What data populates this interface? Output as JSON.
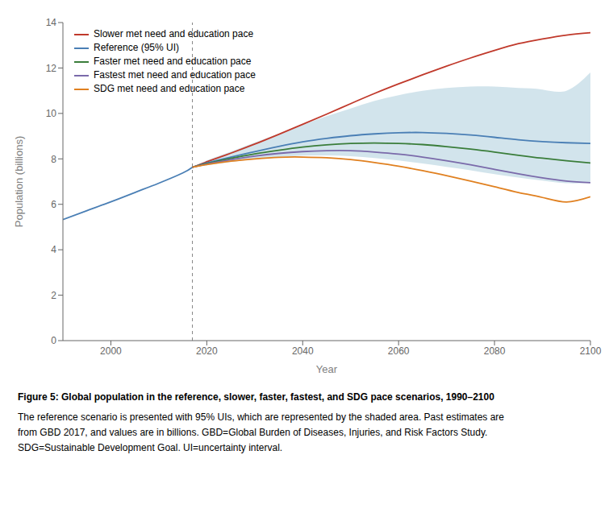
{
  "chart_data": {
    "type": "line",
    "title": "Figure 5: Global population in the reference, slower, faster, fastest, and SDG pace scenarios, 1990–2100",
    "caption": [
      "The reference scenario is presented with 95% UIs, which are represented by the shaded area. Past estimates are",
      "from GBD 2017, and values are in billions. GBD=Global Burden of Diseases, Injuries, and Risk Factors Study.",
      "SDG=Sustainable Development Goal. UI=uncertainty interval."
    ],
    "xlabel": "Year",
    "ylabel": "Population (billions)",
    "xlim": [
      1990,
      2100
    ],
    "ylim": [
      0,
      14
    ],
    "xticks": [
      2000,
      2020,
      2040,
      2060,
      2080,
      2100
    ],
    "yticks": [
      0,
      2,
      4,
      6,
      8,
      10,
      12,
      14
    ],
    "grid": false,
    "legend": "upper left",
    "vline": 2017,
    "series": [
      {
        "color": "#4a7fb5",
        "x": [
          1990,
          1995,
          2000,
          2005,
          2010,
          2015,
          2017
        ],
        "values": [
          5.33,
          5.72,
          6.11,
          6.52,
          6.93,
          7.38,
          7.63
        ]
      },
      {
        "name": "Slower met need and education pace",
        "color": "#c0392b",
        "x": [
          2017,
          2020,
          2025,
          2030,
          2035,
          2040,
          2045,
          2050,
          2055,
          2060,
          2065,
          2070,
          2075,
          2080,
          2085,
          2090,
          2095,
          2100
        ],
        "values": [
          7.63,
          7.87,
          8.25,
          8.65,
          9.08,
          9.52,
          9.97,
          10.43,
          10.88,
          11.3,
          11.7,
          12.08,
          12.44,
          12.77,
          13.07,
          13.28,
          13.45,
          13.55
        ]
      },
      {
        "name": "Reference (95% UI)",
        "color": "#4a7fb5",
        "band_color": "#bad6e2",
        "x": [
          2017,
          2020,
          2025,
          2030,
          2035,
          2040,
          2045,
          2050,
          2055,
          2060,
          2065,
          2070,
          2075,
          2080,
          2085,
          2090,
          2095,
          2100
        ],
        "values": [
          7.63,
          7.82,
          8.08,
          8.32,
          8.55,
          8.75,
          8.9,
          9.02,
          9.1,
          9.15,
          9.16,
          9.12,
          9.05,
          8.95,
          8.84,
          8.76,
          8.71,
          8.68
        ],
        "upper": [
          7.63,
          7.93,
          8.32,
          8.72,
          9.1,
          9.5,
          9.88,
          10.22,
          10.55,
          10.8,
          11.0,
          11.12,
          11.18,
          11.18,
          11.12,
          11.05,
          11.0,
          11.8
        ],
        "lower": [
          7.63,
          7.72,
          7.86,
          7.98,
          8.08,
          8.14,
          8.15,
          8.12,
          8.04,
          7.93,
          7.8,
          7.65,
          7.5,
          7.33,
          7.18,
          7.04,
          6.93,
          6.95
        ]
      },
      {
        "name": "Faster met need and education pace",
        "color": "#3a7d3a",
        "x": [
          2017,
          2020,
          2025,
          2030,
          2035,
          2040,
          2045,
          2050,
          2055,
          2060,
          2065,
          2070,
          2075,
          2080,
          2085,
          2090,
          2095,
          2100
        ],
        "values": [
          7.63,
          7.79,
          8.02,
          8.22,
          8.38,
          8.52,
          8.62,
          8.68,
          8.7,
          8.68,
          8.63,
          8.54,
          8.43,
          8.3,
          8.16,
          8.03,
          7.92,
          7.82
        ]
      },
      {
        "name": "Fastest met need and education pace",
        "color": "#7a6aaa",
        "x": [
          2017,
          2020,
          2025,
          2030,
          2035,
          2040,
          2045,
          2050,
          2055,
          2060,
          2065,
          2070,
          2075,
          2080,
          2085,
          2090,
          2095,
          2100
        ],
        "values": [
          7.63,
          7.77,
          7.96,
          8.12,
          8.24,
          8.32,
          8.36,
          8.36,
          8.3,
          8.21,
          8.08,
          7.92,
          7.74,
          7.54,
          7.34,
          7.16,
          7.02,
          6.95
        ]
      },
      {
        "name": "SDG met need and education pace",
        "color": "#e08020",
        "x": [
          2017,
          2020,
          2025,
          2030,
          2035,
          2040,
          2045,
          2050,
          2055,
          2060,
          2065,
          2070,
          2075,
          2080,
          2085,
          2090,
          2095,
          2100
        ],
        "values": [
          7.63,
          7.75,
          7.9,
          8.0,
          8.07,
          8.08,
          8.05,
          7.97,
          7.84,
          7.68,
          7.48,
          7.26,
          7.02,
          6.77,
          6.52,
          6.3,
          6.1,
          6.33
        ]
      }
    ]
  }
}
